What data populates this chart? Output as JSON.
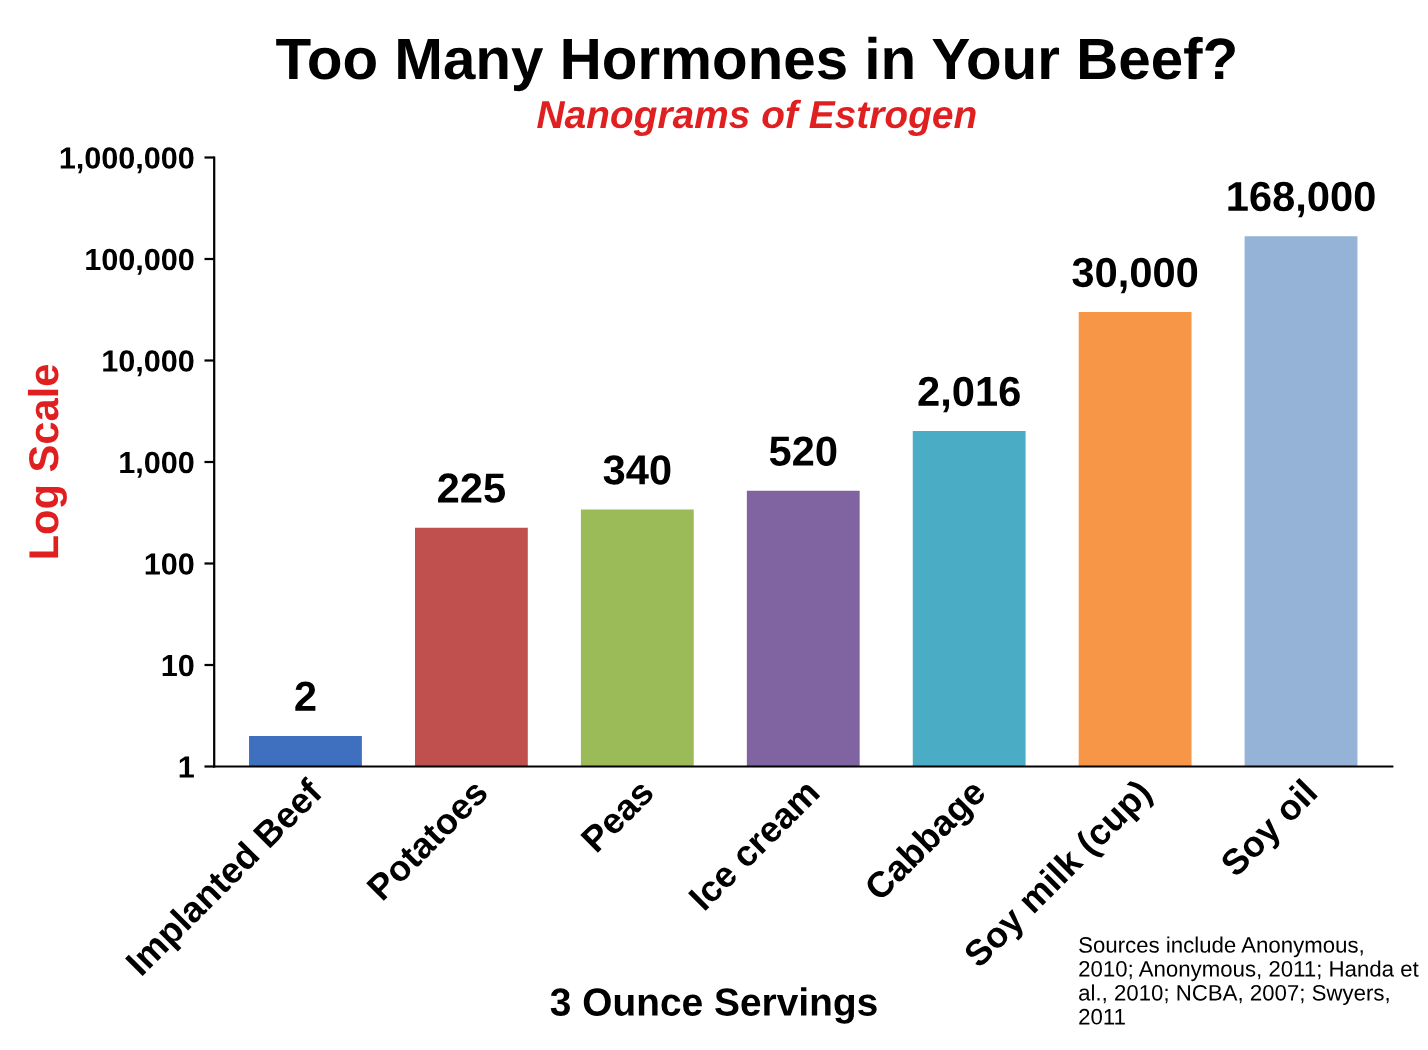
{
  "chart_data": {
    "type": "bar",
    "title": "Too Many Hormones in Your Beef?",
    "subtitle": "Nanograms of Estrogen",
    "xlabel": "3 Ounce Servings",
    "ylabel": "Log Scale",
    "categories": [
      "Implanted Beef",
      "Potatoes",
      "Peas",
      "Ice cream",
      "Cabbage",
      "Soy milk (cup)",
      "Soy oil"
    ],
    "values": [
      2,
      225,
      340,
      520,
      2016,
      30000,
      168000
    ],
    "colors": [
      "#3f6fbf",
      "#c0504d",
      "#9bbb59",
      "#8064a2",
      "#4bacc6",
      "#f79646",
      "#95b3d7"
    ],
    "value_labels": [
      "2",
      "225",
      "340",
      "520",
      "2,016",
      "30,000",
      "168,000"
    ],
    "log": "y",
    "ylim": [
      1,
      1000000
    ],
    "yticks": [
      1,
      10,
      100,
      {
        "value": 1000,
        "label": "1,000"
      },
      {
        "value": 10000,
        "label": "10,000"
      },
      {
        "value": 100000,
        "label": "100,000"
      },
      {
        "value": 1000000,
        "label": "1,000,000"
      }
    ],
    "grid": false,
    "annotations": [
      "Sources include Anonymous, 2010; Anonymous, 2011; Handa et al., 2010; NCBA, 2007; Swyers, 2011"
    ]
  }
}
